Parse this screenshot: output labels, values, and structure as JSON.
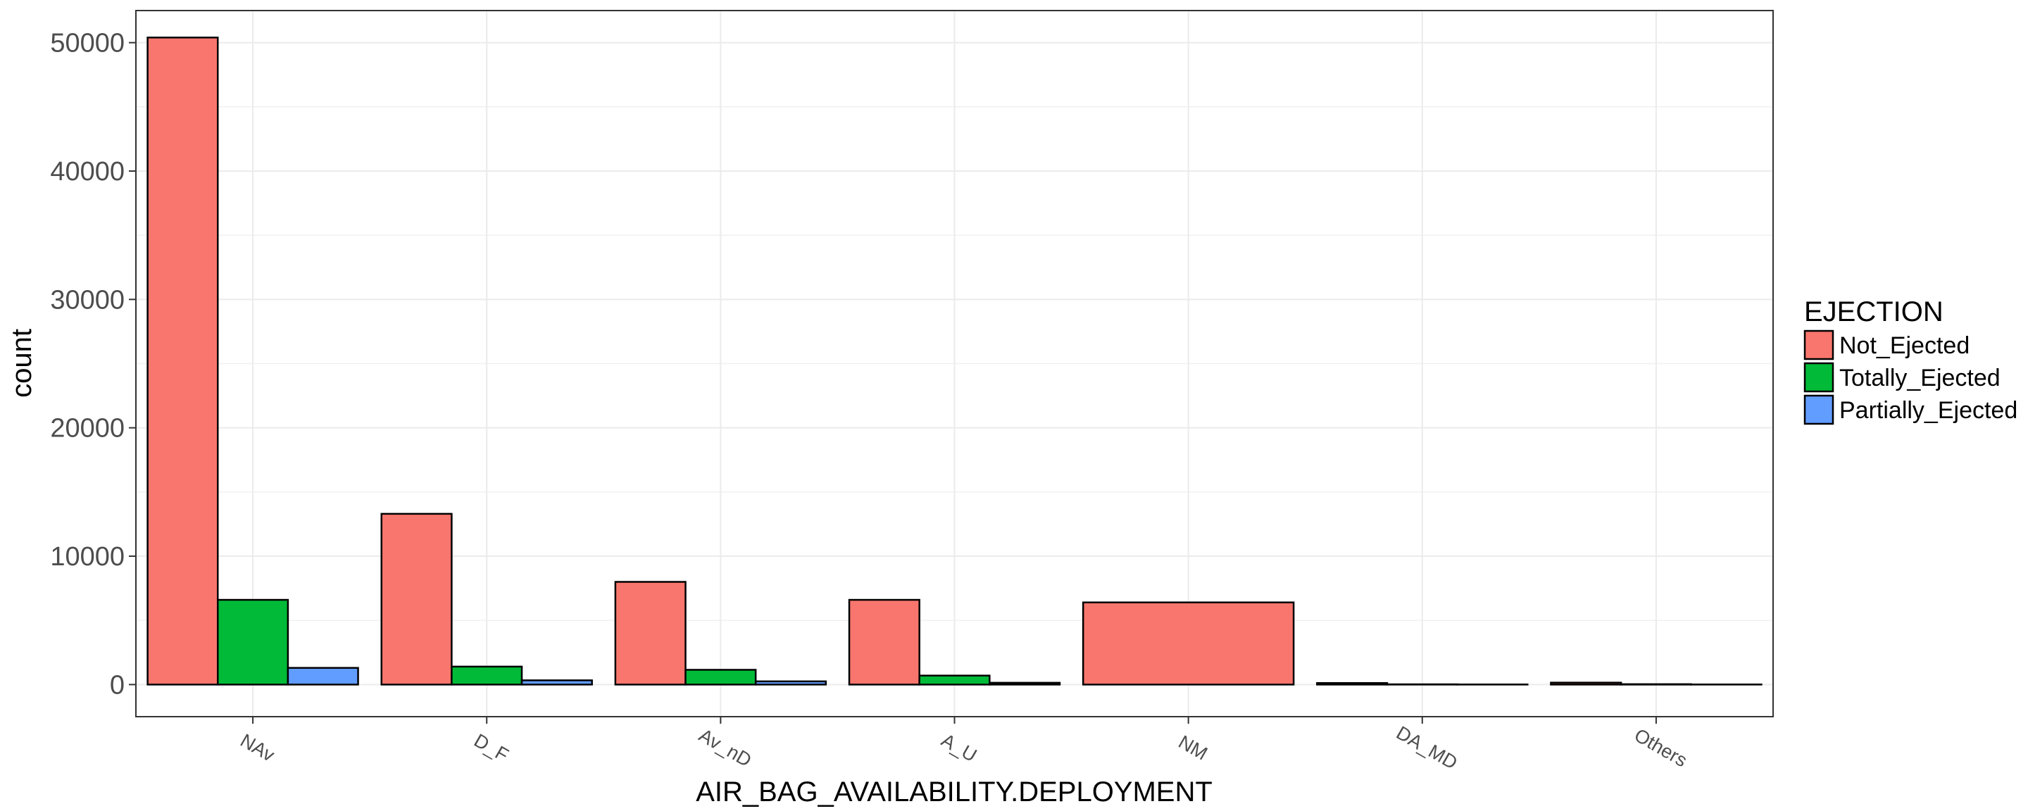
{
  "chart_data": {
    "type": "bar",
    "xlabel": "AIR_BAG_AVAILABILITY.DEPLOYMENT",
    "ylabel": "count",
    "ylim": [
      -2500,
      52500
    ],
    "yticks": [
      0,
      10000,
      20000,
      30000,
      40000,
      50000
    ],
    "ytick_labels": [
      "0",
      "10000",
      "20000",
      "30000",
      "40000",
      "50000"
    ],
    "grid": true,
    "legend": {
      "title": "EJECTION",
      "position": "right"
    },
    "categories": [
      "NAv",
      "D_F",
      "Av_nD",
      "A_U",
      "NM",
      "DA_MD",
      "Others"
    ],
    "series": [
      {
        "name": "Not_Ejected",
        "color": "#F8766D",
        "values": [
          50400,
          13300,
          8000,
          6600,
          6400,
          120,
          150
        ]
      },
      {
        "name": "Totally_Ejected",
        "color": "#00BA38",
        "values": [
          6600,
          1400,
          1150,
          700,
          null,
          20,
          30
        ]
      },
      {
        "name": "Partially_Ejected",
        "color": "#619CFF",
        "values": [
          1300,
          330,
          250,
          140,
          null,
          10,
          10
        ]
      }
    ]
  }
}
